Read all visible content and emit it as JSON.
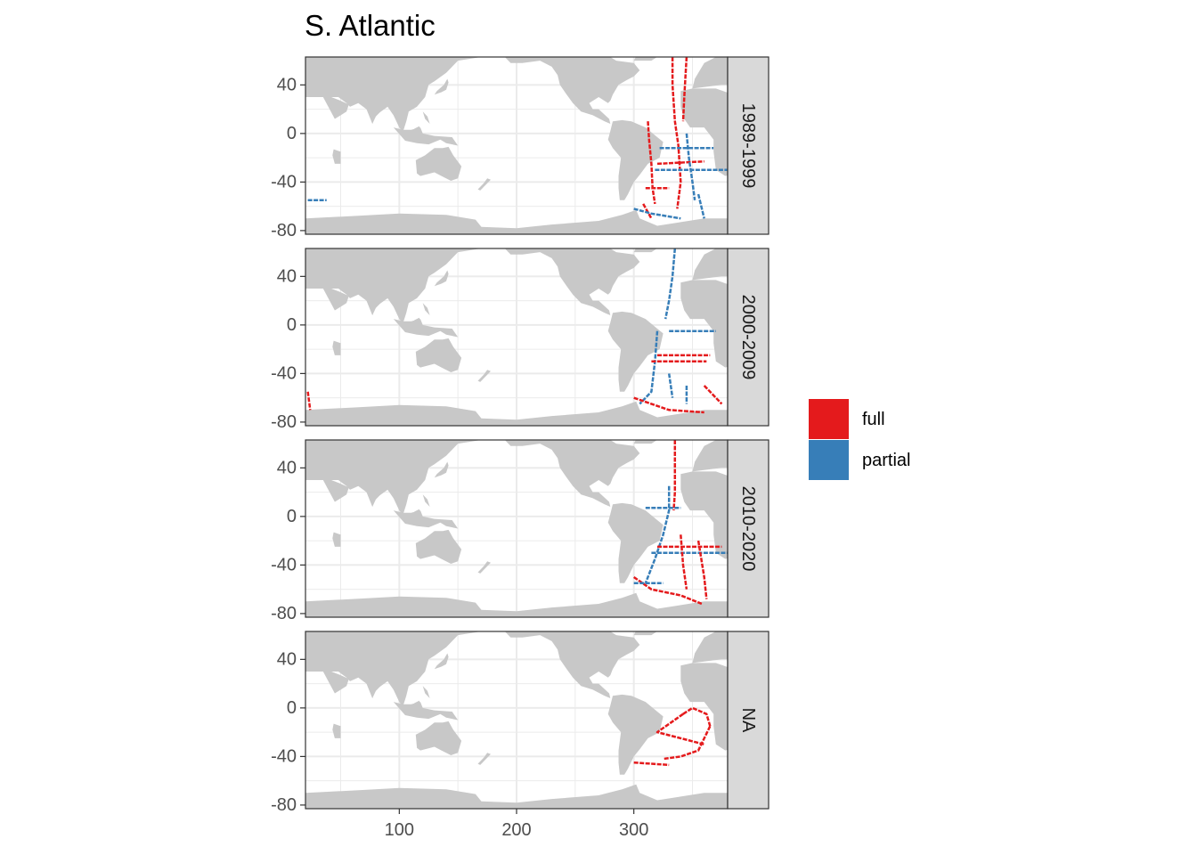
{
  "chart_data": {
    "type": "map",
    "title": "S. Atlantic",
    "xlabel": "",
    "ylabel": "",
    "xlim": [
      20,
      380
    ],
    "ylim": [
      -83,
      63
    ],
    "x_ticks": [
      100,
      200,
      300
    ],
    "x_tick_labels": [
      "100",
      "200",
      "300"
    ],
    "y_ticks": [
      40,
      0,
      -40,
      -80
    ],
    "y_tick_labels": [
      "40",
      "0",
      "-40",
      "-80"
    ],
    "grid": true,
    "legend_position": "right",
    "legend": [
      {
        "label": "full",
        "color": "#e41a1c"
      },
      {
        "label": "partial",
        "color": "#377eb8"
      }
    ],
    "panels": [
      {
        "strip": "1989-1999",
        "tracks": [
          {
            "category": "full",
            "points": [
              [
                333,
                63
              ],
              [
                333,
                40
              ],
              [
                335,
                10
              ],
              [
                338,
                -10
              ],
              [
                340,
                -40
              ],
              [
                337,
                -62
              ]
            ]
          },
          {
            "category": "full",
            "points": [
              [
                345,
                63
              ],
              [
                343,
                30
              ],
              [
                342,
                10
              ]
            ]
          },
          {
            "category": "full",
            "points": [
              [
                312,
                10
              ],
              [
                313,
                -5
              ],
              [
                315,
                -25
              ],
              [
                316,
                -45
              ],
              [
                318,
                -58
              ]
            ]
          },
          {
            "category": "full",
            "points": [
              [
                320,
                -25
              ],
              [
                360,
                -23
              ]
            ]
          },
          {
            "category": "full",
            "points": [
              [
                308,
                -58
              ],
              [
                315,
                -70
              ]
            ]
          },
          {
            "category": "partial",
            "points": [
              [
                322,
                -12
              ],
              [
                368,
                -12
              ]
            ]
          },
          {
            "category": "partial",
            "points": [
              [
                318,
                -30
              ],
              [
                380,
                -30
              ]
            ]
          },
          {
            "category": "partial",
            "points": [
              [
                345,
                0
              ],
              [
                347,
                -20
              ],
              [
                350,
                -40
              ],
              [
                352,
                -55
              ]
            ]
          },
          {
            "category": "partial",
            "points": [
              [
                300,
                -62
              ],
              [
                315,
                -66
              ],
              [
                340,
                -70
              ]
            ]
          },
          {
            "category": "partial",
            "points": [
              [
                355,
                -50
              ],
              [
                360,
                -70
              ]
            ]
          },
          {
            "category": "partial",
            "points": [
              [
                22,
                -55
              ],
              [
                38,
                -55
              ]
            ]
          },
          {
            "category": "full",
            "points": [
              [
                310,
                -45
              ],
              [
                330,
                -45
              ]
            ]
          }
        ]
      },
      {
        "strip": "2000-2009",
        "tracks": [
          {
            "category": "partial",
            "points": [
              [
                335,
                63
              ],
              [
                333,
                40
              ],
              [
                330,
                20
              ],
              [
                327,
                5
              ]
            ]
          },
          {
            "category": "partial",
            "points": [
              [
                320,
                -5
              ],
              [
                318,
                -30
              ],
              [
                315,
                -55
              ],
              [
                305,
                -65
              ]
            ]
          },
          {
            "category": "full",
            "points": [
              [
                320,
                -25
              ],
              [
                365,
                -25
              ]
            ]
          },
          {
            "category": "full",
            "points": [
              [
                315,
                -30
              ],
              [
                362,
                -30
              ]
            ]
          },
          {
            "category": "partial",
            "points": [
              [
                330,
                -40
              ],
              [
                333,
                -60
              ]
            ]
          },
          {
            "category": "partial",
            "points": [
              [
                345,
                -50
              ],
              [
                345,
                -65
              ]
            ]
          },
          {
            "category": "full",
            "points": [
              [
                300,
                -60
              ],
              [
                330,
                -70
              ],
              [
                360,
                -72
              ]
            ]
          },
          {
            "category": "full",
            "points": [
              [
                360,
                -50
              ],
              [
                375,
                -65
              ]
            ]
          },
          {
            "category": "partial",
            "points": [
              [
                330,
                -5
              ],
              [
                370,
                -5
              ]
            ]
          },
          {
            "category": "full",
            "points": [
              [
                22,
                -55
              ],
              [
                24,
                -70
              ]
            ]
          }
        ]
      },
      {
        "strip": "2010-2020",
        "tracks": [
          {
            "category": "full",
            "points": [
              [
                335,
                63
              ],
              [
                335,
                40
              ],
              [
                335,
                20
              ],
              [
                334,
                5
              ]
            ]
          },
          {
            "category": "partial",
            "points": [
              [
                330,
                25
              ],
              [
                330,
                5
              ],
              [
                325,
                -15
              ],
              [
                318,
                -35
              ],
              [
                310,
                -55
              ]
            ]
          },
          {
            "category": "partial",
            "points": [
              [
                310,
                7
              ],
              [
                340,
                7
              ]
            ]
          },
          {
            "category": "full",
            "points": [
              [
                320,
                -25
              ],
              [
                375,
                -25
              ]
            ]
          },
          {
            "category": "partial",
            "points": [
              [
                315,
                -30
              ],
              [
                380,
                -30
              ]
            ]
          },
          {
            "category": "full",
            "points": [
              [
                340,
                -15
              ],
              [
                342,
                -40
              ],
              [
                345,
                -60
              ]
            ]
          },
          {
            "category": "full",
            "points": [
              [
                355,
                -20
              ],
              [
                360,
                -50
              ],
              [
                362,
                -68
              ]
            ]
          },
          {
            "category": "full",
            "points": [
              [
                300,
                -50
              ],
              [
                315,
                -60
              ],
              [
                340,
                -65
              ],
              [
                358,
                -72
              ]
            ]
          },
          {
            "category": "partial",
            "points": [
              [
                300,
                -55
              ],
              [
                325,
                -55
              ]
            ]
          }
        ]
      },
      {
        "strip": "NA",
        "tracks": [
          {
            "category": "full",
            "points": [
              [
                342,
                -5
              ],
              [
                320,
                -20
              ],
              [
                340,
                -25
              ],
              [
                360,
                -30
              ]
            ]
          },
          {
            "category": "full",
            "points": [
              [
                342,
                -5
              ],
              [
                350,
                0
              ],
              [
                362,
                -5
              ],
              [
                365,
                -15
              ]
            ]
          },
          {
            "category": "full",
            "points": [
              [
                365,
                -15
              ],
              [
                355,
                -35
              ],
              [
                340,
                -40
              ],
              [
                325,
                -42
              ]
            ]
          },
          {
            "category": "full",
            "points": [
              [
                300,
                -45
              ],
              [
                330,
                -47
              ]
            ]
          }
        ]
      }
    ]
  }
}
